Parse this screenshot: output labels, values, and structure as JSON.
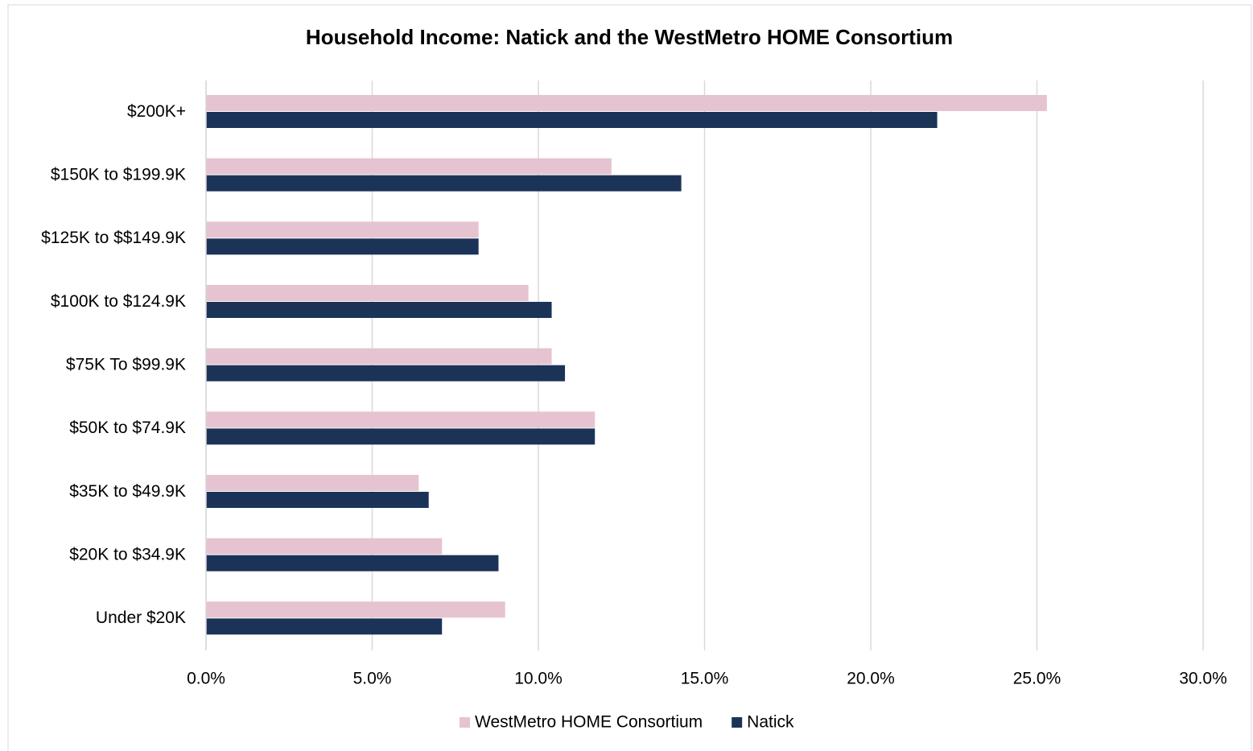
{
  "chart_data": {
    "type": "barh",
    "title": "Household Income: Natick and the WestMetro HOME Consortium",
    "categories": [
      "$200K+",
      "$150K to $199.9K",
      "$125K to $$149.9K",
      "$100K to $124.9K",
      "$75K To $99.9K",
      "$50K to $74.9K",
      "$35K to $49.9K",
      "$20K to $34.9K",
      "Under $20K"
    ],
    "series": [
      {
        "name": "WestMetro HOME Consortium",
        "color": "#e6c3d0",
        "values": [
          25.3,
          12.2,
          8.2,
          9.7,
          10.4,
          11.7,
          6.4,
          7.1,
          9.0
        ]
      },
      {
        "name": "Natick",
        "color": "#1c3358",
        "values": [
          22.0,
          14.3,
          8.2,
          10.4,
          10.8,
          11.7,
          6.7,
          8.8,
          7.1
        ]
      }
    ],
    "xlim": [
      0,
      30
    ],
    "xticks": [
      {
        "value": 0,
        "label": "0.0%"
      },
      {
        "value": 5,
        "label": "5.0%"
      },
      {
        "value": 10,
        "label": "10.0%"
      },
      {
        "value": 15,
        "label": "15.0%"
      },
      {
        "value": 20,
        "label": "20.0%"
      },
      {
        "value": 25,
        "label": "25.0%"
      },
      {
        "value": 30,
        "label": "30.0%"
      }
    ],
    "grid": true,
    "legend": "bottom"
  }
}
